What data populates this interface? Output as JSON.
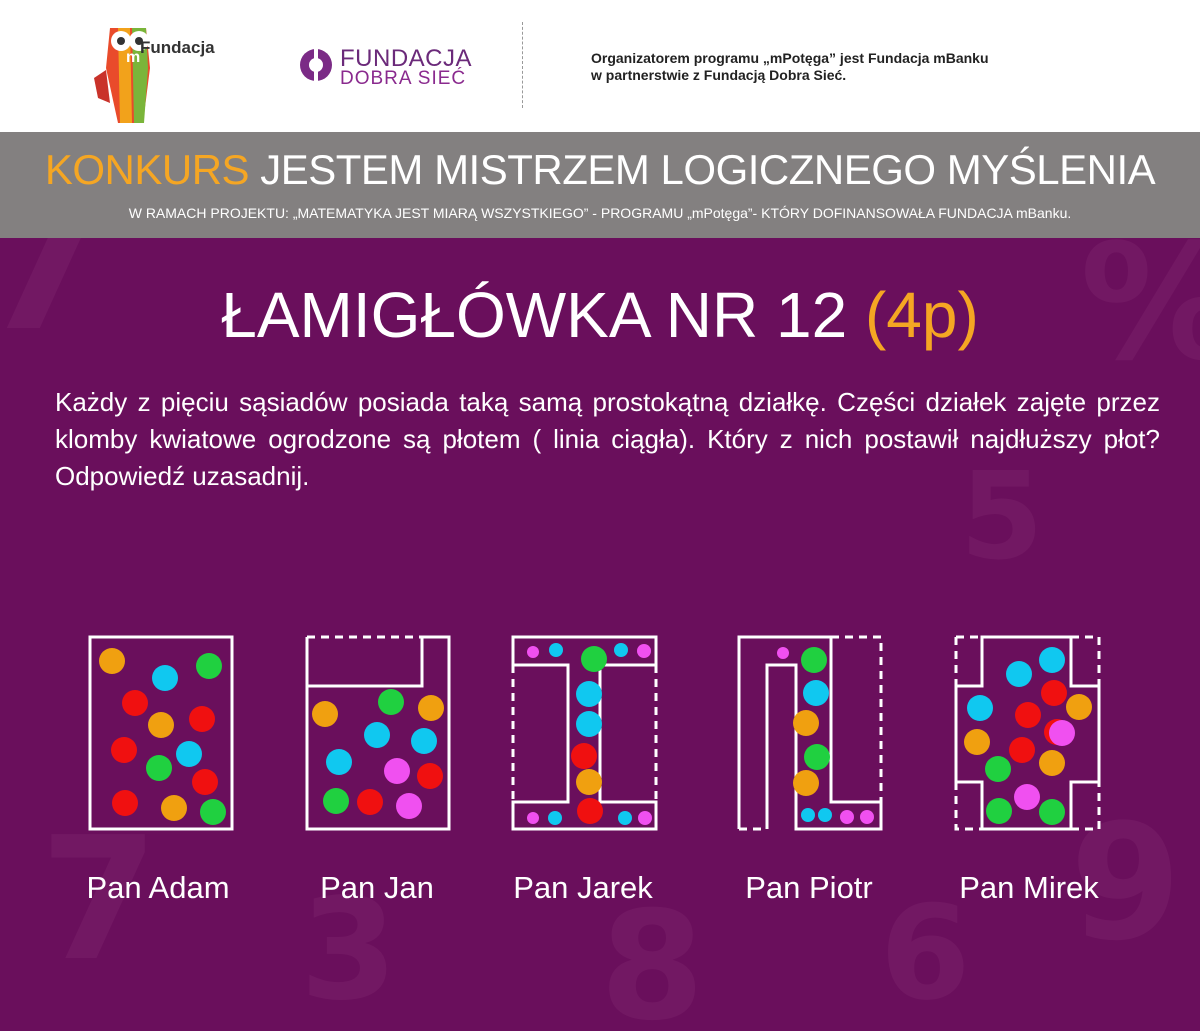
{
  "header": {
    "logo_mfundacja_text": "Fundacja",
    "logo_dobra_line1": "FUNDACJA",
    "logo_dobra_line2": "DOBRA SIEĆ",
    "organizer_line1": "Organizatorem programu „mPotęga” jest Fundacja mBanku",
    "organizer_line2": "w partnerstwie z Fundacją Dobra Sieć."
  },
  "banner": {
    "title_highlight": "KONKURS",
    "title_rest": " JESTEM MISTRZEM LOGICZNEGO MYŚLENIA",
    "subtitle": "W RAMACH PROJEKTU: „MATEMATYKA JEST MIARĄ WSZYSTKIEGO” - PROGRAMU „mPotęga”- KTÓRY DOFINANSOWAŁA FUNDACJA mBanku."
  },
  "puzzle": {
    "title": "ŁAMIGŁÓWKA  NR 12 ",
    "points": "(4p)",
    "question": "Każdy z pięciu sąsiadów posiada taką samą prostokątną działkę. Części działek zajęte przez klomby kwiatowe ogrodzone są płotem ( linia ciągła). Który z nich postawił najdłuższy płot? Odpowiedź uzasadnij."
  },
  "plots": [
    {
      "label": "Pan Adam"
    },
    {
      "label": "Pan Jan"
    },
    {
      "label": "Pan Jarek"
    },
    {
      "label": "Pan Piotr"
    },
    {
      "label": "Pan Mirek"
    }
  ],
  "colors": {
    "background": "#6a0f5c",
    "banner": "#838080",
    "accent": "#f5a623",
    "flower_orange": "#f0a010",
    "flower_cyan": "#10c8f0",
    "flower_green": "#20d040",
    "flower_red": "#f01010",
    "flower_pink": "#f050f0"
  }
}
